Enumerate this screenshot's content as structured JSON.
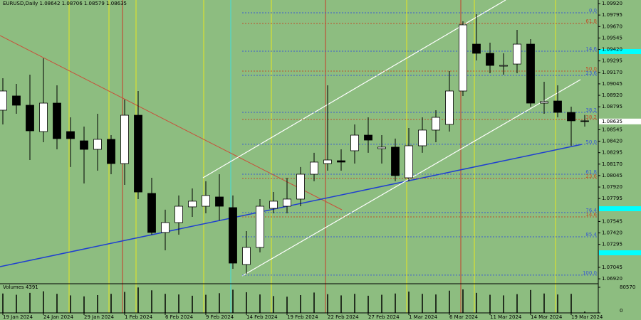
{
  "chart_data": {
    "type": "candlestick",
    "title": "EURUSD,Daily  1.08642 1.08706 1.08579 1.08635",
    "categories": [
      "19 Jan 2024",
      null,
      null,
      "24 Jan 2024",
      null,
      null,
      "29 Jan 2024",
      null,
      null,
      "1 Feb 2024",
      null,
      null,
      "6 Feb 2024",
      null,
      null,
      "9 Feb 2024",
      null,
      null,
      "14 Feb 2024",
      null,
      null,
      "19 Feb 2024",
      null,
      null,
      "22 Feb 2024",
      null,
      null,
      "27 Feb 2024",
      null,
      null,
      "1 Mar 2024",
      null,
      null,
      "6 Mar 2024",
      null,
      null,
      "11 Mar 2024",
      null,
      null,
      "14 Mar 2024",
      null,
      null,
      "19 Mar 2024",
      null
    ],
    "open": [
      1.08758,
      1.08913,
      1.08812,
      1.08525,
      1.08835,
      1.08525,
      1.08424,
      1.08331,
      1.0844,
      1.08176,
      1.08703,
      1.07851,
      1.07425,
      1.07533,
      1.07704,
      1.07711,
      1.07812,
      1.07696,
      1.07076,
      1.07262,
      1.07688,
      1.07711,
      1.07789,
      1.0806,
      1.08176,
      1.08207,
      1.08316,
      1.08486,
      1.08339,
      1.08355,
      1.08021,
      1.0837,
      1.08541,
      1.08603,
      1.08967,
      1.09478,
      1.09378,
      1.09238,
      1.09261,
      1.09478,
      1.08835,
      1.08858,
      1.08734,
      1.08642
    ],
    "high": [
      1.09106,
      1.09044,
      1.09145,
      1.09323,
      1.09029,
      1.0868,
      1.08579,
      1.08719,
      1.08486,
      1.08874,
      1.08967,
      1.08021,
      1.07673,
      1.07828,
      1.07905,
      1.07983,
      1.0806,
      1.07828,
      1.0744,
      1.07789,
      1.07866,
      1.08021,
      1.08138,
      1.08293,
      1.09029,
      1.08331,
      1.08603,
      1.0868,
      1.08486,
      1.08448,
      1.08564,
      1.0868,
      1.08758,
      1.09184,
      1.09726,
      1.09804,
      1.09494,
      1.09378,
      1.09633,
      1.09533,
      1.09068,
      1.09029,
      1.08796,
      1.08706
    ],
    "low": [
      1.08603,
      1.08719,
      1.08215,
      1.08409,
      1.08331,
      1.08138,
      1.07959,
      1.08099,
      1.0806,
      1.07944,
      1.07789,
      1.07401,
      1.07231,
      1.07401,
      1.07595,
      1.07634,
      1.07556,
      1.07029,
      1.06975,
      1.07208,
      1.07634,
      1.07634,
      1.07711,
      1.07983,
      1.08099,
      1.08099,
      1.08176,
      1.08293,
      1.08176,
      1.07983,
      1.07983,
      1.08293,
      1.08409,
      1.08525,
      1.08913,
      1.093,
      1.09161,
      1.09145,
      1.09161,
      1.08796,
      1.08719,
      1.0868,
      1.0837,
      1.08579
    ],
    "close": [
      1.08967,
      1.08812,
      1.08533,
      1.08835,
      1.08448,
      1.08448,
      1.08331,
      1.0844,
      1.08176,
      1.08703,
      1.07866,
      1.07425,
      1.07533,
      1.07711,
      1.07766,
      1.07828,
      1.07711,
      1.07091,
      1.07262,
      1.07711,
      1.07766,
      1.07789,
      1.0806,
      1.08192,
      1.08215,
      1.08192,
      1.08486,
      1.08432,
      1.08355,
      1.08045,
      1.0837,
      1.08541,
      1.0868,
      1.08967,
      1.09688,
      1.09378,
      1.09246,
      1.09246,
      1.09478,
      1.08835,
      1.08851,
      1.08734,
      1.08642,
      1.08635
    ],
    "up_color": "#ffffff",
    "down_color": "#000000",
    "ylim": [
      1.06874,
      1.09959
    ],
    "yticks": [
      {
        "value": 1.0992,
        "label": "1.09920"
      },
      {
        "value": 1.09795,
        "label": "1.09795"
      },
      {
        "value": 1.0967,
        "label": "1.09670"
      },
      {
        "value": 1.09545,
        "label": "1.09545"
      },
      {
        "value": 1.0942,
        "label": "1.09420"
      },
      {
        "value": 1.09295,
        "label": "1.09295"
      },
      {
        "value": 1.0917,
        "label": "1.09170"
      },
      {
        "value": 1.09045,
        "label": "1.09045"
      },
      {
        "value": 1.0892,
        "label": "1.08920"
      },
      {
        "value": 1.08795,
        "label": "1.08795"
      },
      {
        "value": 1.08545,
        "label": "1.08545"
      },
      {
        "value": 1.0842,
        "label": "1.08420"
      },
      {
        "value": 1.08295,
        "label": "1.08295"
      },
      {
        "value": 1.0817,
        "label": "1.08170"
      },
      {
        "value": 1.08045,
        "label": "1.08045"
      },
      {
        "value": 1.0792,
        "label": "1.07920"
      },
      {
        "value": 1.07795,
        "label": "1.07795"
      },
      {
        "value": 1.07545,
        "label": "1.07545"
      },
      {
        "value": 1.0742,
        "label": "1.07420"
      },
      {
        "value": 1.07295,
        "label": "1.07295"
      },
      {
        "value": 1.07045,
        "label": "1.07045"
      },
      {
        "value": 1.0692,
        "label": "1.06920"
      }
    ],
    "levels": [
      {
        "label": "0.0",
        "value": 1.09819,
        "color": "#3a5bd0"
      },
      {
        "label": "61.8",
        "value": 1.09703,
        "color": "#c0502a"
      },
      {
        "label": "14.6",
        "value": 1.09401,
        "color": "#3a5bd0"
      },
      {
        "label": "50.0",
        "value": 1.09184,
        "color": "#c0502a"
      },
      {
        "label": "23.6",
        "value": 1.09137,
        "color": "#3a5bd0"
      },
      {
        "label": "38.2",
        "value": 1.08734,
        "color": "#3a5bd0"
      },
      {
        "label": "38.2",
        "value": 1.08657,
        "color": "#c0502a"
      },
      {
        "label": "50.0",
        "value": 1.08386,
        "color": "#3a5bd0"
      },
      {
        "label": "61.8",
        "value": 1.0806,
        "color": "#3a5bd0"
      },
      {
        "label": "23.6",
        "value": 1.08014,
        "color": "#c0502a"
      },
      {
        "label": "76.4",
        "value": 1.07642,
        "color": "#3a5bd0"
      },
      {
        "label": "14.6",
        "value": 1.07595,
        "color": "#c0502a"
      },
      {
        "label": "85.4",
        "value": 1.07378,
        "color": "#3a5bd0"
      },
      {
        "label": "100.0",
        "value": 1.0696,
        "color": "#3a5bd0"
      }
    ],
    "volume": {
      "title": "Volumes 4391",
      "values": [
        61000,
        57000,
        63000,
        68000,
        60000,
        55000,
        52000,
        56000,
        60000,
        66000,
        80000,
        71000,
        60000,
        58000,
        54000,
        57000,
        62000,
        73000,
        65000,
        58000,
        53000,
        51000,
        56000,
        64000,
        59000,
        55000,
        60000,
        54000,
        57000,
        61000,
        67000,
        60000,
        58000,
        70000,
        74000,
        63000,
        57000,
        55000,
        59000,
        72000,
        61000,
        58000,
        60000,
        4391
      ],
      "ylim": [
        0,
        80570
      ],
      "yticks": [
        80570,
        0
      ],
      "color": "#000000"
    }
  }
}
